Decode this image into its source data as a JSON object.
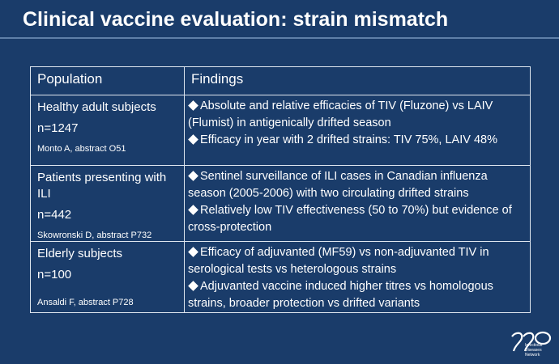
{
  "slide": {
    "title": "Clinical vaccine evaluation: strain mismatch"
  },
  "table": {
    "headers": [
      "Population",
      "Findings"
    ],
    "rows": [
      {
        "population": "Healthy adult subjects",
        "n": "n=1247",
        "reference": "Monto A, abstract O51",
        "findings": [
          "Absolute and relative efficacies of TIV (Fluzone) vs LAIV (Flumist) in antigenically drifted season",
          "Efficacy in year with 2 drifted strains: TIV 75%, LAIV 48%"
        ]
      },
      {
        "population": "Patients presenting with ILI",
        "n": "n=442",
        "reference": "Skowronski D, abstract P732",
        "findings": [
          "Sentinel surveillance of ILI cases in Canadian influenza season (2005-2006) with two circulating drifted strains",
          "Relatively low TIV effectiveness (50 to 70%) but evidence of cross-protection"
        ]
      },
      {
        "population": "Elderly subjects",
        "n": "n=100",
        "reference": "Ansaldi F, abstract P728",
        "findings": [
          "Efficacy of adjuvanted (MF59) vs non-adjuvanted TIV in serological tests vs heterologous strains",
          "Adjuvanted vaccine induced higher titres vs homologous strains, broader protection vs drifted variants"
        ]
      }
    ]
  },
  "logo": {
    "lines": [
      "Infectious",
      "Diseases",
      "Network"
    ]
  },
  "colors": {
    "background": "#1a3c6a",
    "text": "#ffffff",
    "rule": "#5f7fa8",
    "table_border": "#dfe6ef"
  },
  "icons": [
    "diamond-bullet-icon",
    "network-logo-icon"
  ]
}
